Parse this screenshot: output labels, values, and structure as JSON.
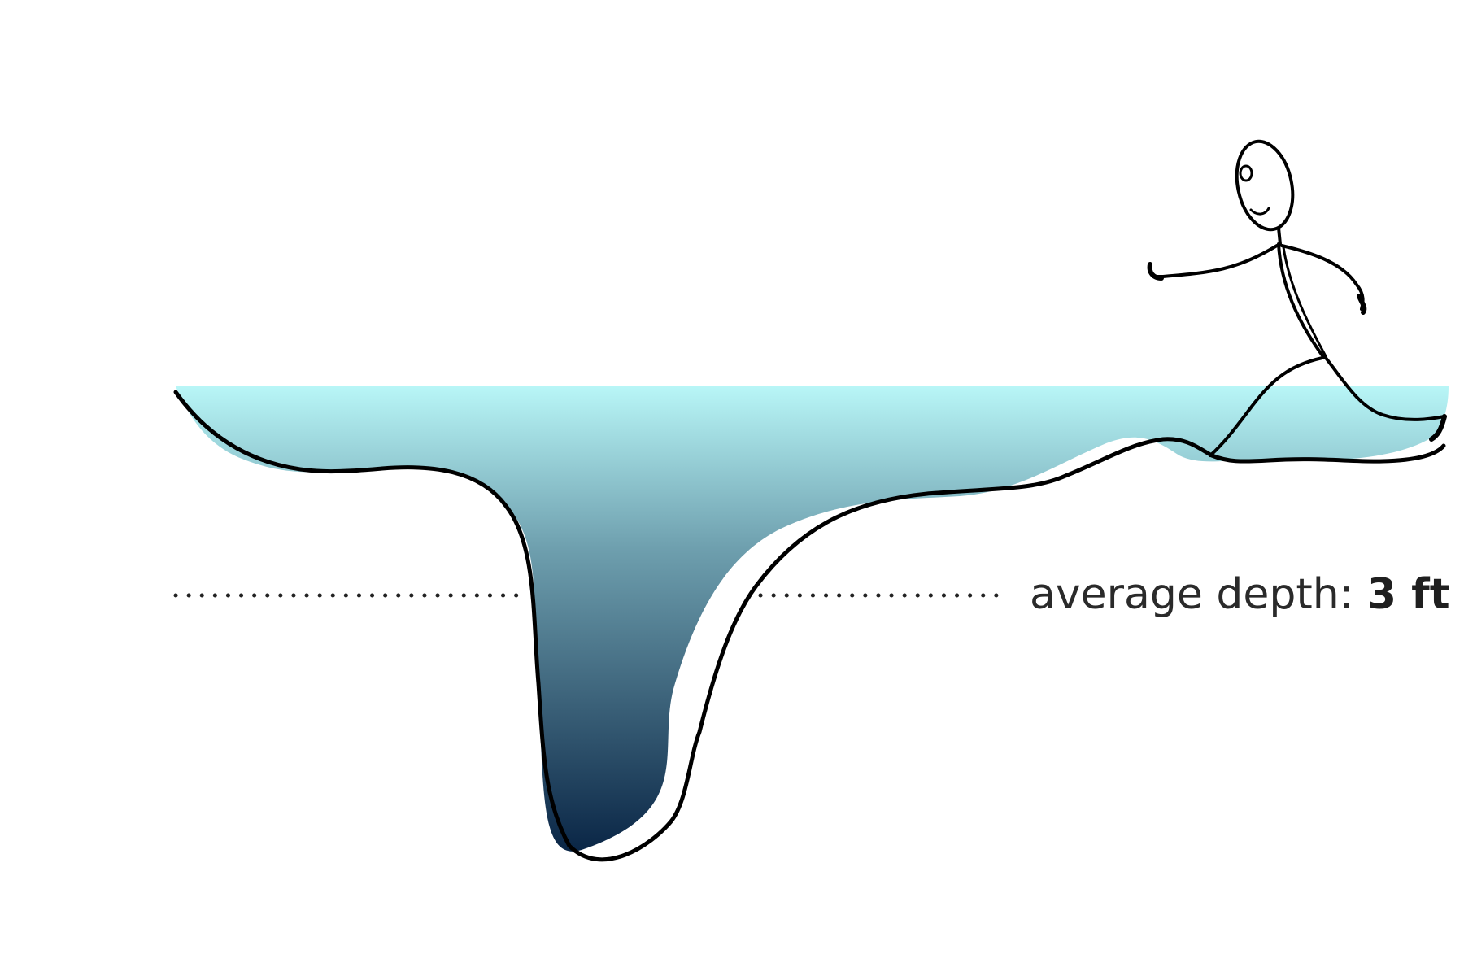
{
  "annotation": {
    "label_prefix": "average depth: ",
    "value": "3 ft"
  },
  "colors": {
    "water_top": "#b8f6f7",
    "water_mid": "#6e9fae",
    "water_bottom": "#0a2646",
    "outline": "#000000",
    "dotted_line": "#222222"
  },
  "figure": {
    "icon": "stick-figure-walking",
    "mood": "smiling"
  }
}
